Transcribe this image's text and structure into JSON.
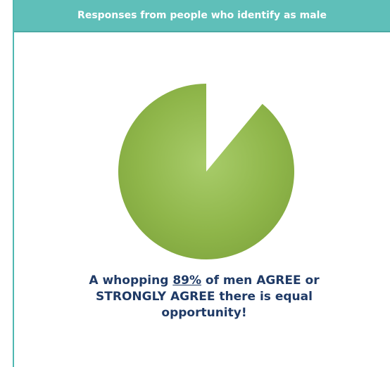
{
  "header": {
    "title": "Responses from people who identify as male"
  },
  "chart_data": {
    "type": "pie",
    "title": "",
    "slices": [
      {
        "label": "",
        "value": 89,
        "color": "#8fb64a",
        "shown": true
      },
      {
        "label": "",
        "value": 11,
        "color": "#ffffff",
        "shown": false
      }
    ],
    "start_angle_deg": 0,
    "direction": "counterclockwise",
    "legend": "none"
  },
  "caption": {
    "part1": "A whopping ",
    "percent": "89%",
    "part2": " of men AGREE or STRONGLY AGREE there is equal opportunity!"
  },
  "colors": {
    "header_bg": "#5fbfb9",
    "border": "#4fb7b1",
    "pie_green": "#8fb64a",
    "caption_text": "#1f3a66"
  }
}
